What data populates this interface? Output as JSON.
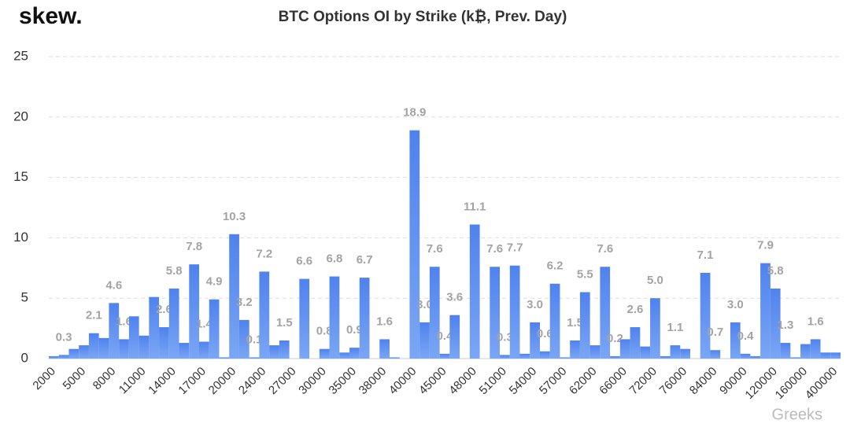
{
  "chart_data": {
    "type": "bar",
    "brand": "skew.",
    "title": "BTC Options OI by Strike (k₿, Prev. Day)",
    "watermark": "Greeks",
    "categories": [
      "2000",
      null,
      null,
      "5000",
      null,
      null,
      "8000",
      null,
      null,
      "11000",
      null,
      null,
      "14000",
      null,
      null,
      "17000",
      null,
      null,
      "20000",
      null,
      null,
      "24000",
      null,
      null,
      "27000",
      null,
      null,
      "30000",
      null,
      null,
      "35000",
      null,
      null,
      "38000",
      null,
      null,
      "40000",
      null,
      null,
      "45000",
      null,
      null,
      "48000",
      null,
      null,
      "51000",
      null,
      null,
      "54000",
      null,
      null,
      "57000",
      null,
      null,
      "62000",
      null,
      null,
      "66000",
      null,
      null,
      "72000",
      null,
      null,
      "76000",
      null,
      null,
      "84000",
      null,
      null,
      "90000",
      null,
      null,
      "120000",
      null,
      null,
      "160000",
      null,
      null,
      "400000"
    ],
    "values": [
      0.2,
      0.3,
      0.8,
      1.1,
      2.1,
      1.7,
      4.6,
      1.6,
      3.5,
      1.9,
      5.1,
      2.6,
      5.8,
      1.3,
      7.8,
      1.4,
      4.9,
      0.1,
      10.3,
      3.2,
      0.1,
      7.2,
      1.1,
      1.5,
      0,
      6.6,
      0,
      0.8,
      6.8,
      0.5,
      0.9,
      6.7,
      0,
      1.6,
      0.1,
      0,
      18.9,
      3.0,
      7.6,
      0.4,
      3.6,
      0,
      11.1,
      0,
      7.6,
      0.3,
      7.7,
      0.4,
      3.0,
      0.6,
      6.2,
      0.1,
      1.5,
      5.5,
      1.1,
      7.6,
      0.2,
      1.6,
      2.6,
      1.0,
      5.0,
      0.2,
      1.1,
      0.8,
      0,
      7.1,
      0.7,
      0,
      3.0,
      0.4,
      0.2,
      7.9,
      5.8,
      1.3,
      0.1,
      1.2,
      1.6,
      0.5,
      0.5
    ],
    "value_labels": [
      null,
      "0.3",
      null,
      null,
      "2.1",
      null,
      "4.6",
      "1.6",
      null,
      null,
      null,
      "2.6",
      "5.8",
      null,
      "7.8",
      "1.4",
      "4.9",
      null,
      "10.3",
      "3.2",
      "0.1",
      "7.2",
      null,
      "1.5",
      null,
      "6.6",
      null,
      "0.8",
      "6.8",
      null,
      "0.9",
      "6.7",
      null,
      "1.6",
      null,
      null,
      "18.9",
      "3.0",
      "7.6",
      "0.4",
      "3.6",
      null,
      "11.1",
      null,
      "7.6",
      "0.3",
      "7.7",
      null,
      "3.0",
      "0.6",
      "6.2",
      null,
      "1.5",
      "5.5",
      null,
      "7.6",
      "0.2",
      null,
      "2.6",
      null,
      "5.0",
      null,
      "1.1",
      null,
      null,
      "7.1",
      "0.7",
      null,
      "3.0",
      "0.4",
      null,
      "7.9",
      "5.8",
      "1.3",
      null,
      null,
      "1.6",
      null,
      null
    ],
    "color": "#5b8ef0",
    "ylim": [
      0,
      25
    ],
    "yticks": [
      0,
      5,
      10,
      15,
      20,
      25
    ],
    "grid": true
  }
}
